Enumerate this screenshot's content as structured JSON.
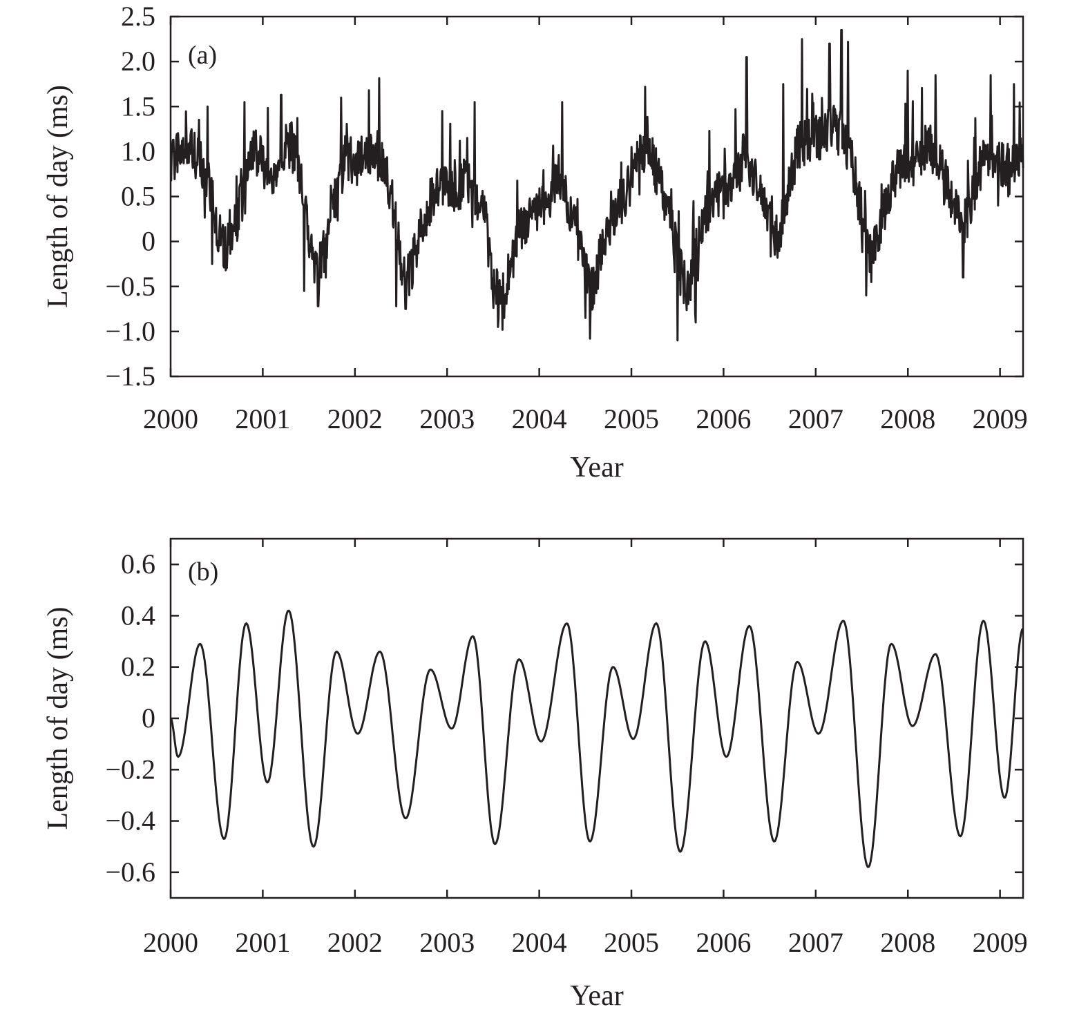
{
  "chart_data": [
    {
      "panel": "(a)",
      "type": "line",
      "xlabel": "Year",
      "ylabel": "Length of day (ms)",
      "xlim": [
        2000,
        2009.25
      ],
      "ylim": [
        -1.5,
        2.5
      ],
      "xticks": [
        2000,
        2001,
        2002,
        2003,
        2004,
        2005,
        2006,
        2007,
        2008,
        2009
      ],
      "xtick_labels": [
        "2000",
        "2001",
        "2002",
        "2003",
        "2004",
        "2005",
        "2006",
        "2007",
        "2008",
        "2009"
      ],
      "yticks": [
        2.5,
        2.0,
        1.5,
        1.0,
        0.5,
        0,
        -0.5,
        -1.0,
        -1.5
      ],
      "ytick_labels": [
        "2.5",
        "2.0",
        "1.5",
        "1.0",
        "0.5",
        "0",
        "−0.5",
        "−1.0",
        "−1.5"
      ],
      "grid": false,
      "series": [
        {
          "x": [
            2000.0,
            2000.1,
            2000.2,
            2000.3,
            2000.4,
            2000.5,
            2000.6,
            2000.7,
            2000.8,
            2000.9,
            2001.0,
            2001.1,
            2001.2,
            2001.3,
            2001.4,
            2001.5,
            2001.6,
            2001.7,
            2001.8,
            2001.9,
            2002.0,
            2002.1,
            2002.2,
            2002.3,
            2002.4,
            2002.5,
            2002.6,
            2002.7,
            2002.8,
            2002.9,
            2003.0,
            2003.1,
            2003.2,
            2003.3,
            2003.4,
            2003.5,
            2003.6,
            2003.7,
            2003.8,
            2003.9,
            2004.0,
            2004.1,
            2004.2,
            2004.3,
            2004.4,
            2004.5,
            2004.6,
            2004.7,
            2004.8,
            2004.9,
            2005.0,
            2005.1,
            2005.2,
            2005.3,
            2005.4,
            2005.5,
            2005.6,
            2005.7,
            2005.8,
            2005.9,
            2006.0,
            2006.1,
            2006.2,
            2006.3,
            2006.4,
            2006.5,
            2006.6,
            2006.7,
            2006.8,
            2006.9,
            2007.0,
            2007.1,
            2007.2,
            2007.3,
            2007.4,
            2007.5,
            2007.6,
            2007.7,
            2007.8,
            2007.9,
            2008.0,
            2008.1,
            2008.2,
            2008.3,
            2008.4,
            2008.5,
            2008.6,
            2008.7,
            2008.8,
            2008.9,
            2009.0,
            2009.1,
            2009.2
          ],
          "y": [
            0.85,
            1.05,
            1.0,
            0.95,
            0.75,
            0.2,
            -0.1,
            0.15,
            0.6,
            1.1,
            0.85,
            0.65,
            1.0,
            1.1,
            0.75,
            0.0,
            -0.35,
            0.05,
            0.55,
            0.95,
            0.85,
            0.95,
            1.05,
            0.85,
            0.5,
            -0.2,
            -0.35,
            0.05,
            0.4,
            0.55,
            0.55,
            0.6,
            0.65,
            0.55,
            0.4,
            -0.5,
            -0.7,
            -0.2,
            0.15,
            0.25,
            0.4,
            0.45,
            0.75,
            0.5,
            0.15,
            -0.35,
            -0.55,
            0.05,
            0.3,
            0.45,
            0.65,
            0.95,
            1.05,
            0.65,
            0.35,
            -0.25,
            -0.55,
            -0.15,
            0.3,
            0.55,
            0.55,
            0.75,
            0.95,
            0.85,
            0.55,
            0.2,
            0.05,
            0.55,
            1.05,
            1.1,
            1.15,
            1.2,
            1.3,
            1.15,
            0.85,
            0.3,
            -0.25,
            0.2,
            0.6,
            0.85,
            0.9,
            0.85,
            1.05,
            1.0,
            0.65,
            0.35,
            0.15,
            0.5,
            0.85,
            1.0,
            0.85,
            0.75,
            0.9
          ],
          "peaks": [
            [
              2000.4,
              1.5
            ],
            [
              2000.45,
              -0.25
            ],
            [
              2000.6,
              -0.32
            ],
            [
              2000.8,
              1.55
            ],
            [
              2001.2,
              1.63
            ],
            [
              2001.45,
              -0.55
            ],
            [
              2001.6,
              -0.72
            ],
            [
              2001.85,
              1.6
            ],
            [
              2002.15,
              1.68
            ],
            [
              2002.45,
              -0.72
            ],
            [
              2002.55,
              -0.75
            ],
            [
              2002.95,
              1.45
            ],
            [
              2003.3,
              1.55
            ],
            [
              2003.55,
              -0.95
            ],
            [
              2003.6,
              -0.98
            ],
            [
              2004.25,
              1.55
            ],
            [
              2004.5,
              -0.85
            ],
            [
              2004.55,
              -1.08
            ],
            [
              2005.15,
              1.72
            ],
            [
              2005.5,
              -1.1
            ],
            [
              2005.7,
              -0.9
            ],
            [
              2006.25,
              2.05
            ],
            [
              2006.65,
              1.75
            ],
            [
              2006.85,
              2.25
            ],
            [
              2007.15,
              2.2
            ],
            [
              2007.28,
              2.35
            ],
            [
              2007.35,
              2.22
            ],
            [
              2007.55,
              -0.6
            ],
            [
              2008.0,
              1.9
            ],
            [
              2008.3,
              1.85
            ],
            [
              2008.6,
              -0.4
            ],
            [
              2008.9,
              1.85
            ],
            [
              2009.15,
              1.75
            ]
          ]
        }
      ]
    },
    {
      "panel": "(b)",
      "type": "line",
      "xlabel": "Year",
      "ylabel": "Length of day (ms)",
      "xlim": [
        2000,
        2009.25
      ],
      "ylim": [
        -0.7,
        0.7
      ],
      "xticks": [
        2000,
        2001,
        2002,
        2003,
        2004,
        2005,
        2006,
        2007,
        2008,
        2009
      ],
      "xtick_labels": [
        "2000",
        "2001",
        "2002",
        "2003",
        "2004",
        "2005",
        "2006",
        "2007",
        "2008",
        "2009"
      ],
      "yticks": [
        0.6,
        0.4,
        0.2,
        0,
        -0.2,
        -0.4,
        -0.6
      ],
      "ytick_labels": [
        "0.6",
        "0.4",
        "0.2",
        "0",
        "−0.2",
        "−0.4",
        "−0.6"
      ],
      "grid": false,
      "series": [
        {
          "x": [
            2000.0,
            2000.08,
            2000.32,
            2000.58,
            2000.82,
            2001.05,
            2001.28,
            2001.55,
            2001.8,
            2002.03,
            2002.27,
            2002.55,
            2002.82,
            2003.05,
            2003.28,
            2003.52,
            2003.78,
            2004.02,
            2004.3,
            2004.55,
            2004.8,
            2005.02,
            2005.27,
            2005.53,
            2005.8,
            2006.03,
            2006.28,
            2006.55,
            2006.8,
            2007.03,
            2007.3,
            2007.57,
            2007.82,
            2008.05,
            2008.3,
            2008.57,
            2008.82,
            2009.05,
            2009.25
          ],
          "y": [
            0.0,
            -0.15,
            0.29,
            -0.47,
            0.37,
            -0.25,
            0.42,
            -0.5,
            0.26,
            -0.06,
            0.26,
            -0.39,
            0.19,
            -0.04,
            0.32,
            -0.49,
            0.23,
            -0.09,
            0.37,
            -0.48,
            0.2,
            -0.08,
            0.37,
            -0.52,
            0.3,
            -0.15,
            0.36,
            -0.48,
            0.22,
            -0.06,
            0.38,
            -0.58,
            0.29,
            -0.03,
            0.25,
            -0.46,
            0.38,
            -0.31,
            0.35
          ]
        }
      ]
    }
  ]
}
